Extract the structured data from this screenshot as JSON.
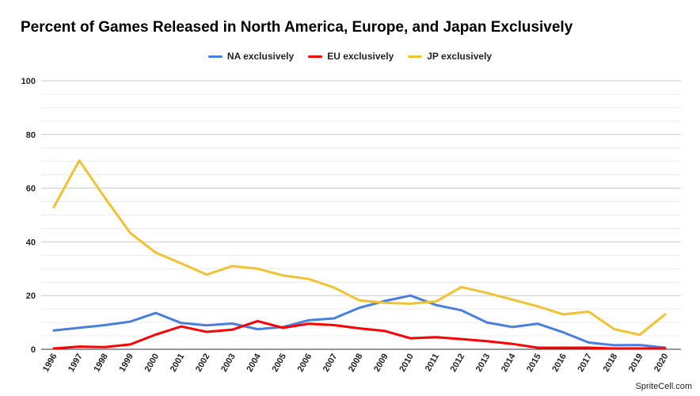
{
  "chart_data": {
    "type": "line",
    "title": "Percent of Games Released in North America, Europe, and Japan Exclusively",
    "xlabel": "",
    "ylabel": "",
    "ylim": [
      0,
      100
    ],
    "yticks": [
      "0",
      "20",
      "40",
      "60",
      "80",
      "100"
    ],
    "grid": true,
    "legend_position": "top",
    "categories": [
      "1996",
      "1997",
      "1998",
      "1999",
      "2000",
      "2001",
      "2002",
      "2003",
      "2004",
      "2005",
      "2006",
      "2007",
      "2008",
      "2009",
      "2010",
      "2011",
      "2012",
      "2013",
      "2014",
      "2015",
      "2016",
      "2017",
      "2018",
      "2019",
      "2020"
    ],
    "series": [
      {
        "name": "NA exclusively",
        "color": "#4a7fe0",
        "values": [
          7,
          8,
          9,
          10.3,
          13.5,
          9.8,
          8.9,
          9.6,
          7.5,
          8.3,
          10.8,
          11.5,
          15.5,
          18,
          20,
          16.5,
          14.5,
          10,
          8.3,
          9.5,
          6.3,
          2.5,
          1.5,
          1.6,
          0.6
        ]
      },
      {
        "name": "EU exclusively",
        "color": "#ff0000",
        "values": [
          0.3,
          1,
          0.8,
          1.8,
          5.5,
          8.5,
          6.5,
          7.3,
          10.5,
          8,
          9.5,
          9,
          7.8,
          6.8,
          4.1,
          4.5,
          3.8,
          3,
          2,
          0.6,
          0.6,
          0.6,
          0.3,
          0.3,
          0.3
        ]
      },
      {
        "name": "JP exclusively",
        "color": "#f1c232",
        "values": [
          53,
          70.3,
          56.5,
          43.3,
          36,
          32,
          27.8,
          31,
          30,
          27.5,
          26.2,
          23,
          18.2,
          17.3,
          17,
          17.8,
          23.2,
          21,
          18.5,
          16,
          13,
          14,
          7.5,
          5.4,
          13
        ]
      }
    ]
  },
  "watermark": "SpriteCell.com"
}
